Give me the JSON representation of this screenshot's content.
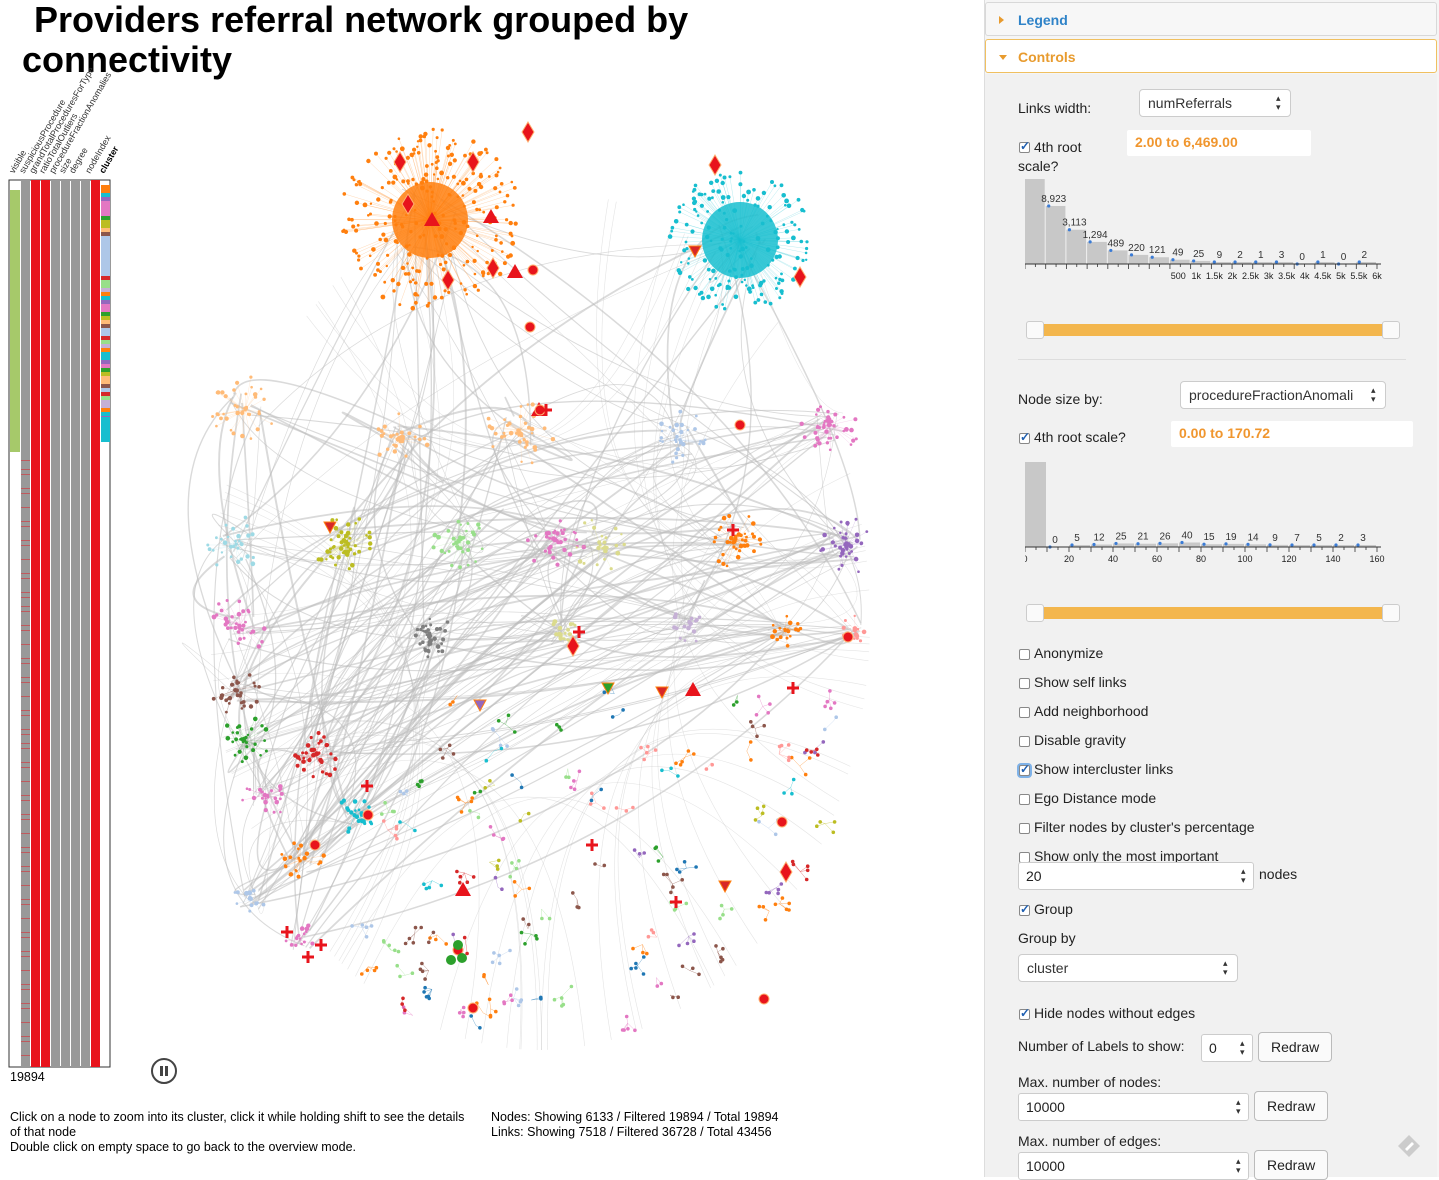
{
  "title": "Providers referral network grouped by connectivity",
  "title_lines": [
    "Providers referral network grouped by",
    "connectivity"
  ],
  "columns": [
    "visible",
    "suspiciousProcedure",
    "grandTotalProceduresForType",
    "ratioTotalOutliers",
    "procedureFractionAnomalies",
    "size",
    "degree",
    "nodeIndex",
    "cluster"
  ],
  "row_count": "19894",
  "help_text": [
    "Click on a node to zoom into its cluster, click it while holding shift to see the details of that node",
    "Double click on empty space to go back to the overview mode."
  ],
  "stats": {
    "nodes": "Nodes: Showing 6133 / Filtered 19894 / Total 19894",
    "links": "Links: Showing 7518 / Filtered 36728 / Total 43456"
  },
  "panel": {
    "legend_label": "Legend",
    "controls_label": "Controls",
    "links_width_label": "Links width:",
    "links_width_value": "numReferrals",
    "links_root_label": "4th root scale?",
    "links_range": "2.00 to 6,469.00",
    "links_hist": {
      "counts": [
        "29,204",
        "8,923",
        "3,113",
        "1,294",
        "489",
        "220",
        "121",
        "49",
        "25",
        "9",
        "2",
        "1",
        "3",
        "0",
        "1",
        "0",
        "2"
      ],
      "ticks": [
        "500",
        "1k",
        "1.5k",
        "2k",
        "2.5k",
        "3k",
        "3.5k",
        "4k",
        "4.5k",
        "5k",
        "5.5k",
        "6k"
      ]
    },
    "node_size_label": "Node size by:",
    "node_size_value": "procedureFractionAnomali",
    "node_root_label": "4th root scale?",
    "node_range": "0.00 to 170.72",
    "node_hist": {
      "counts": [
        "19,691",
        "0",
        "5",
        "12",
        "25",
        "21",
        "26",
        "40",
        "15",
        "19",
        "14",
        "9",
        "7",
        "5",
        "2",
        "3"
      ],
      "ticks": [
        "0",
        "20",
        "40",
        "60",
        "80",
        "100",
        "120",
        "140",
        "160"
      ]
    },
    "checkboxes": [
      {
        "label": "Anonymize",
        "checked": false
      },
      {
        "label": "Show self links",
        "checked": false
      },
      {
        "label": "Add neighborhood",
        "checked": false
      },
      {
        "label": "Disable gravity",
        "checked": false
      },
      {
        "label": "Show intercluster links",
        "checked": true
      },
      {
        "label": "Ego Distance mode",
        "checked": false
      },
      {
        "label": "Filter nodes by cluster's percentage",
        "checked": false
      },
      {
        "label": "Show only the most important",
        "checked": false
      }
    ],
    "important_count": "20",
    "nodes_suffix": "nodes",
    "group_label": "Group",
    "group_by_label": "Group by",
    "group_by_value": "cluster",
    "hide_nodes_label": "Hide nodes without edges",
    "num_labels_label": "Number of Labels to show:",
    "num_labels_value": "0",
    "redraw": "Redraw",
    "max_nodes_label": "Max. number of nodes:",
    "max_nodes_value": "10000",
    "max_edges_label": "Max. number of edges:",
    "max_edges_value": "10000"
  },
  "colors": {
    "accent_orange": "#f0962e",
    "link_blue": "#2f83c8",
    "cluster_orange": "#ff7f0e",
    "cluster_cyan": "#17becf",
    "anomaly_red": "#e8141c",
    "edge_gray": "#bbbbbb"
  }
}
